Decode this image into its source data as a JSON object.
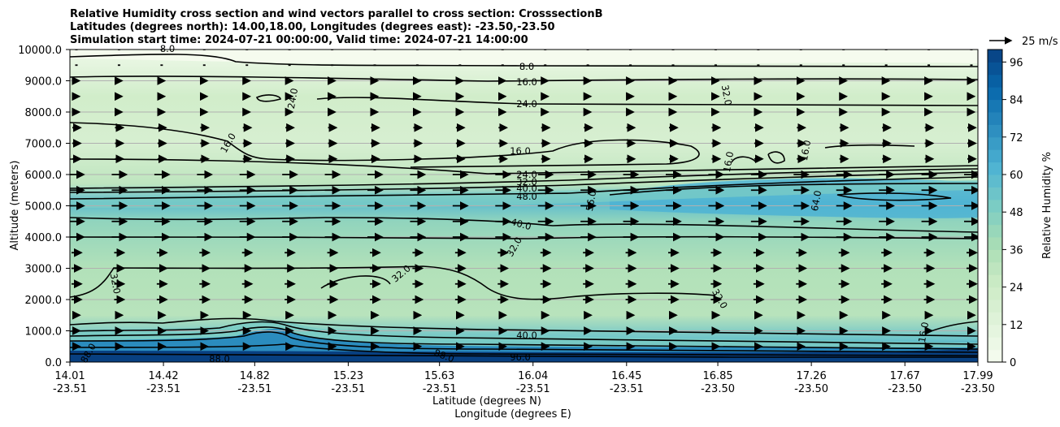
{
  "chart_data": {
    "type": "contour",
    "title_lines": [
      "Relative Humidity cross section and wind vectors parallel to cross section: CrosssectionB",
      "Latitudes (degrees north): 14.00,18.00, Longitudes (degrees east): -23.50,-23.50",
      "Simulation start time: 2024-07-21 00:00:00, Valid time: 2024-07-21 14:00:00"
    ],
    "ylabel": "Altitude (meters)",
    "xlabel_lat": "Latitude (degrees N)",
    "xlabel_lon": "Longitude (degrees E)",
    "ylim": [
      0,
      10000
    ],
    "y_ticks": [
      "0.0",
      "1000.0",
      "2000.0",
      "3000.0",
      "4000.0",
      "5000.0",
      "6000.0",
      "7000.0",
      "8000.0",
      "9000.0",
      "10000.0"
    ],
    "x_ticks_lat": [
      "14.01",
      "14.42",
      "14.82",
      "15.23",
      "15.63",
      "16.04",
      "16.45",
      "16.85",
      "17.26",
      "17.67",
      "17.99"
    ],
    "x_ticks_lon": [
      "-23.51",
      "-23.51",
      "-23.51",
      "-23.51",
      "-23.51",
      "-23.51",
      "-23.51",
      "-23.50",
      "-23.50",
      "-23.50",
      "-23.50"
    ],
    "grid": "horizontal",
    "colorbar": {
      "label": "Relative Humidity %",
      "range": [
        0,
        100
      ],
      "ticks": [
        "0",
        "12",
        "24",
        "36",
        "48",
        "60",
        "72",
        "84",
        "96"
      ],
      "colors": [
        "#f7fcf0",
        "#e0f3db",
        "#ccebc5",
        "#a8ddb5",
        "#7bccc4",
        "#4eb3d3",
        "#2b8cbe",
        "#0868ac",
        "#084081"
      ]
    },
    "quiver_key": "25 m/s",
    "contour_levels_labeled": [
      "8.0",
      "16.0",
      "24.0",
      "32.0",
      "40.0",
      "48.0",
      "56.0",
      "64.0",
      "88.0",
      "96.0"
    ],
    "humidity_profile": [
      {
        "alt": 0,
        "rh": 96
      },
      {
        "alt": 300,
        "rh": 90
      },
      {
        "alt": 700,
        "rh": 55
      },
      {
        "alt": 1500,
        "rh": 32
      },
      {
        "alt": 3000,
        "rh": 34
      },
      {
        "alt": 4500,
        "rh": 44
      },
      {
        "alt": 5100,
        "rh": 58
      },
      {
        "alt": 5700,
        "rh": 30
      },
      {
        "alt": 7000,
        "rh": 18
      },
      {
        "alt": 8500,
        "rh": 22
      },
      {
        "alt": 9500,
        "rh": 10
      },
      {
        "alt": 10000,
        "rh": 6
      }
    ]
  }
}
